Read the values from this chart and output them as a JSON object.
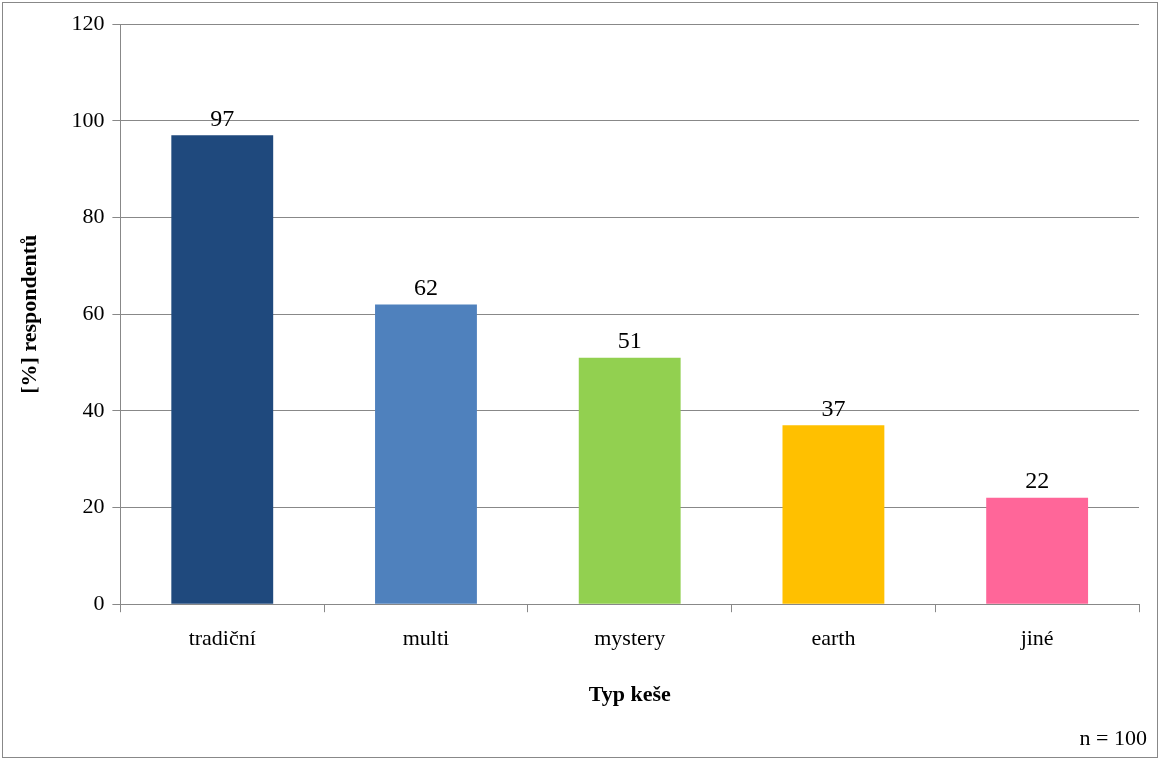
{
  "chart_data": {
    "type": "bar",
    "xlabel": "Typ keše",
    "ylabel": "[%] respondentů",
    "categories": [
      "tradiční",
      "multi",
      "mystery",
      "earth",
      "jiné"
    ],
    "values": [
      97,
      62,
      51,
      37,
      22
    ],
    "colors": [
      "#1f497d",
      "#4f81bd",
      "#92d050",
      "#ffc000",
      "#ff6699"
    ],
    "ylim": [
      0,
      120
    ],
    "yticks": [
      0,
      20,
      40,
      60,
      80,
      100,
      120
    ],
    "grid": "y",
    "legend": false,
    "data_labels": true,
    "annotations": [
      "n = 100"
    ]
  }
}
